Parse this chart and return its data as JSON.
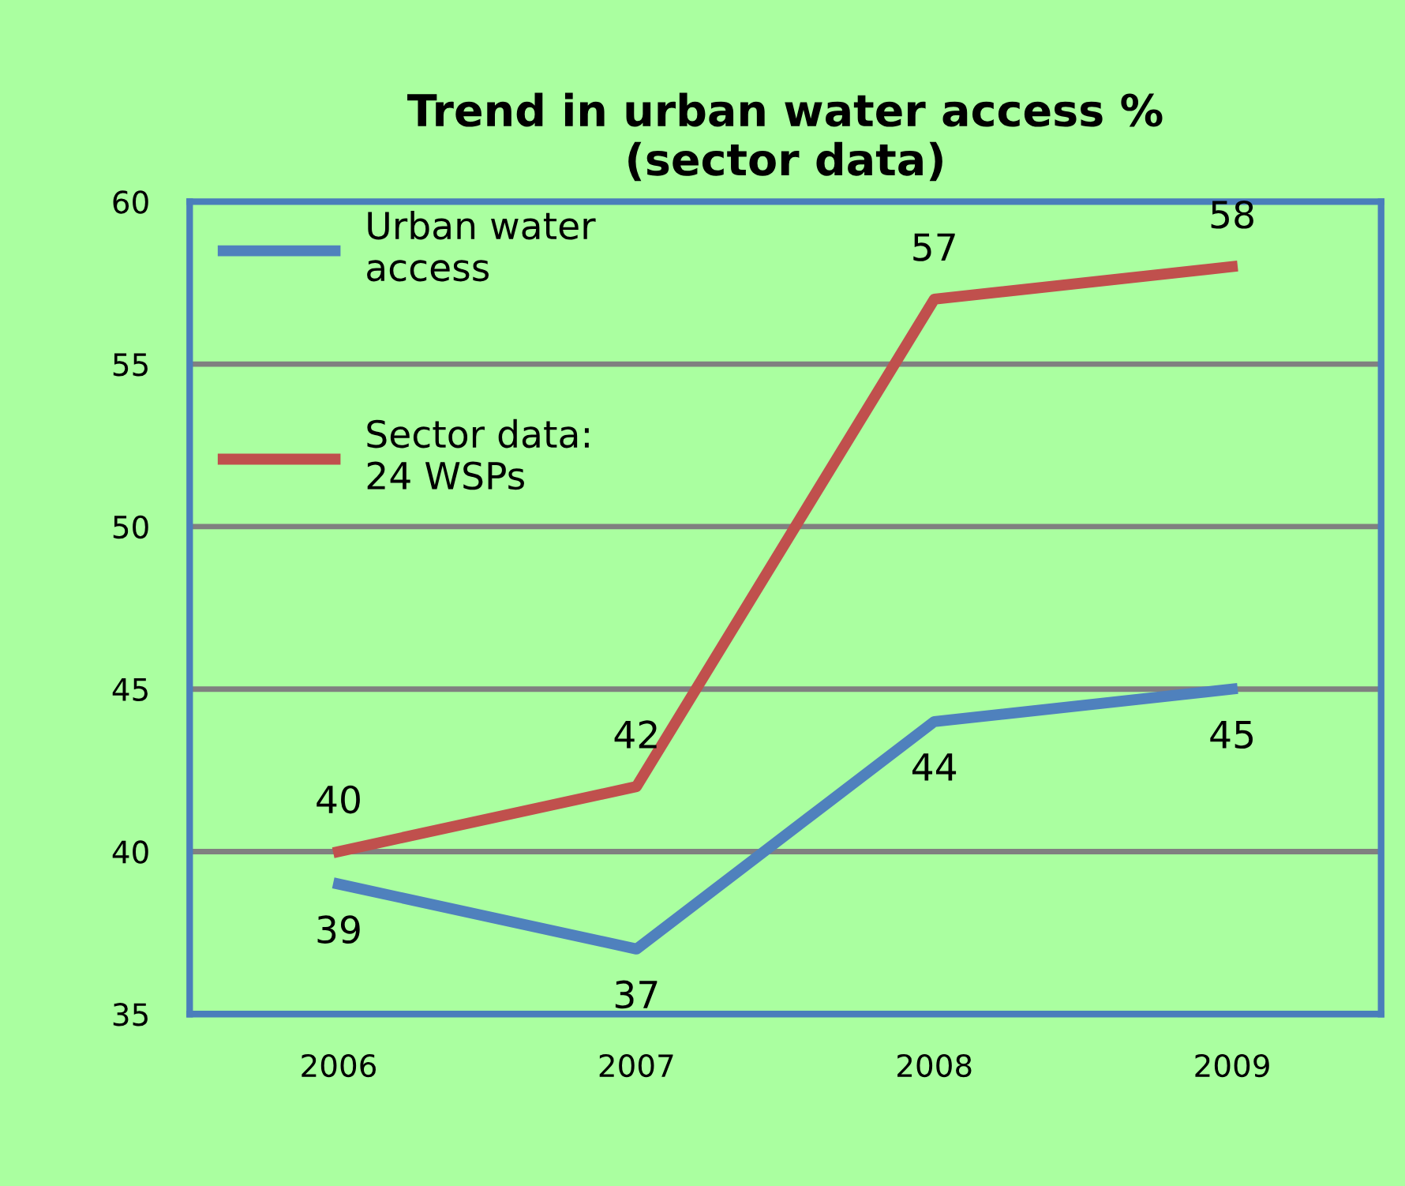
{
  "chart_data": {
    "type": "line",
    "title": "Trend in urban water access %\n(sector data)",
    "categories": [
      "2006",
      "2007",
      "2008",
      "2009"
    ],
    "series": [
      {
        "name": "Urban water\naccess",
        "color": "#4f81bd",
        "values": [
          39,
          37,
          44,
          45
        ]
      },
      {
        "name": "Sector data:\n24 WSPs",
        "color": "#c0504d",
        "values": [
          40,
          42,
          57,
          58
        ]
      }
    ],
    "ylim": [
      35,
      60
    ],
    "yticks": [
      35,
      40,
      45,
      50,
      55,
      60
    ],
    "grid": "y",
    "legend": "top left",
    "data_labels": true,
    "marker": "none",
    "line_style": "solid"
  }
}
